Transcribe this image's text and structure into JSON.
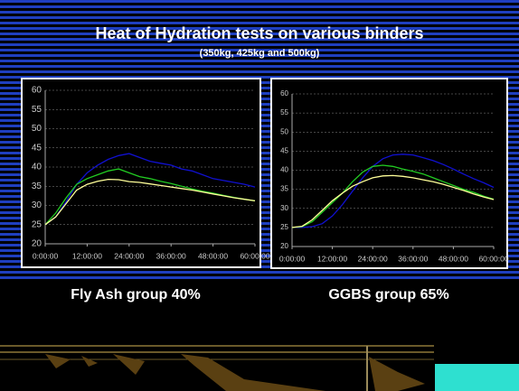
{
  "title": "Heat of Hydration tests on various binders",
  "subtitle": "(350kg, 425kg and 500kg)",
  "chart_data": [
    {
      "type": "line",
      "title": "Fly Ash group 40%",
      "x": [
        0,
        3,
        6,
        9,
        12,
        15,
        18,
        21,
        24,
        27,
        30,
        33,
        36,
        39,
        42,
        45,
        48,
        51,
        54,
        57,
        60
      ],
      "xlim": [
        0,
        60
      ],
      "xticks": [
        {
          "value": 0,
          "label": "0:00:00"
        },
        {
          "value": 12,
          "label": "12:00:00"
        },
        {
          "value": 24,
          "label": "24:00:00"
        },
        {
          "value": 36,
          "label": "36:00:00"
        },
        {
          "value": 48,
          "label": "48:00:00"
        },
        {
          "value": 60,
          "label": "60:00:00"
        }
      ],
      "ylim": [
        20,
        60
      ],
      "yticks": [
        20,
        25,
        30,
        35,
        40,
        45,
        50,
        55,
        60
      ],
      "grid": true,
      "series": [
        {
          "color": "#1010d0",
          "values": [
            25,
            27,
            31,
            35.5,
            38.5,
            40.5,
            42,
            43,
            43.5,
            42.5,
            41.5,
            41,
            40.5,
            39.5,
            39,
            38,
            37,
            36.5,
            36,
            35.5,
            34.8
          ]
        },
        {
          "color": "#22cc22",
          "values": [
            25,
            28,
            32,
            35.5,
            37,
            38,
            39,
            39.5,
            38.5,
            37.5,
            37,
            36.3,
            35.7,
            35,
            34.3,
            33.7,
            33.2,
            32.6,
            32.1,
            31.6,
            31.2
          ]
        },
        {
          "color": "#ffff99",
          "values": [
            25,
            27,
            30.5,
            34,
            35.5,
            36.3,
            36.8,
            36.7,
            36.2,
            36,
            35.6,
            35.2,
            34.8,
            34.4,
            34,
            33.5,
            33,
            32.5,
            32,
            31.6,
            31.2
          ]
        }
      ]
    },
    {
      "type": "line",
      "title": "GGBS group 65%",
      "x": [
        0,
        3,
        6,
        9,
        12,
        15,
        18,
        21,
        24,
        27,
        30,
        33,
        36,
        39,
        42,
        45,
        48,
        51,
        54,
        57,
        60
      ],
      "xlim": [
        0,
        60
      ],
      "xticks": [
        {
          "value": 0,
          "label": "0:00:00"
        },
        {
          "value": 12,
          "label": "12:00:00"
        },
        {
          "value": 24,
          "label": "24:00:00"
        },
        {
          "value": 36,
          "label": "36:00:00"
        },
        {
          "value": 48,
          "label": "48:00:00"
        },
        {
          "value": 60,
          "label": "60:00:00"
        }
      ],
      "ylim": [
        20,
        60
      ],
      "yticks": [
        20,
        25,
        30,
        35,
        40,
        45,
        50,
        55,
        60
      ],
      "grid": true,
      "series": [
        {
          "color": "#1010d0",
          "values": [
            25,
            25,
            25.2,
            26,
            28,
            31,
            34.5,
            38,
            41,
            43,
            44,
            44.2,
            44,
            43.3,
            42.5,
            41.5,
            40.3,
            39,
            37.8,
            36.7,
            35.5
          ]
        },
        {
          "color": "#22cc22",
          "values": [
            25,
            25.2,
            26.5,
            29,
            31.5,
            34,
            37,
            39.5,
            41,
            41.3,
            41,
            40.3,
            39.7,
            39,
            38,
            37,
            36,
            35,
            34.2,
            33.2,
            32.4
          ]
        },
        {
          "color": "#ffff99",
          "values": [
            25,
            25.3,
            27,
            29.5,
            32,
            34,
            35.8,
            37,
            38,
            38.5,
            38.6,
            38.4,
            38,
            37.5,
            37,
            36.3,
            35.5,
            34.7,
            33.8,
            33,
            32.3
          ]
        }
      ]
    }
  ]
}
